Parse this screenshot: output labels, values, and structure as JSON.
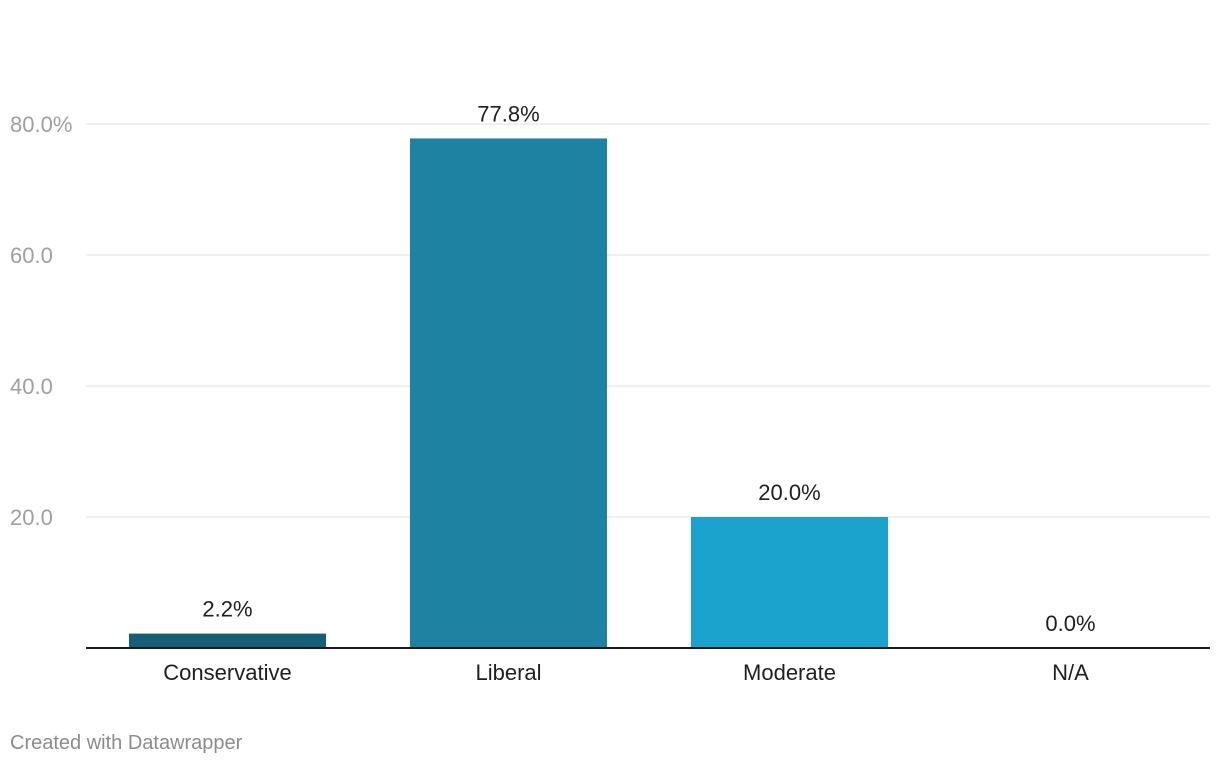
{
  "chart_data": {
    "type": "bar",
    "title": "",
    "xlabel": "",
    "ylabel": "",
    "categories": [
      "Conservative",
      "Liberal",
      "Moderate",
      "N/A"
    ],
    "values": [
      2.2,
      77.8,
      20.0,
      0.0
    ],
    "value_labels": [
      "2.2%",
      "77.8%",
      "20.0%",
      "0.0%"
    ],
    "colors": [
      "#175f77",
      "#1e82a2",
      "#1ba2cd",
      "#1ba2cd"
    ],
    "ylim": [
      0,
      80
    ],
    "yticks": [
      20,
      40,
      60,
      80
    ],
    "ytick_labels": [
      "20.0",
      "40.0",
      "60.0",
      "80.0%"
    ],
    "grid": true,
    "legend": "none"
  },
  "footer": {
    "credit": "Created with Datawrapper"
  }
}
